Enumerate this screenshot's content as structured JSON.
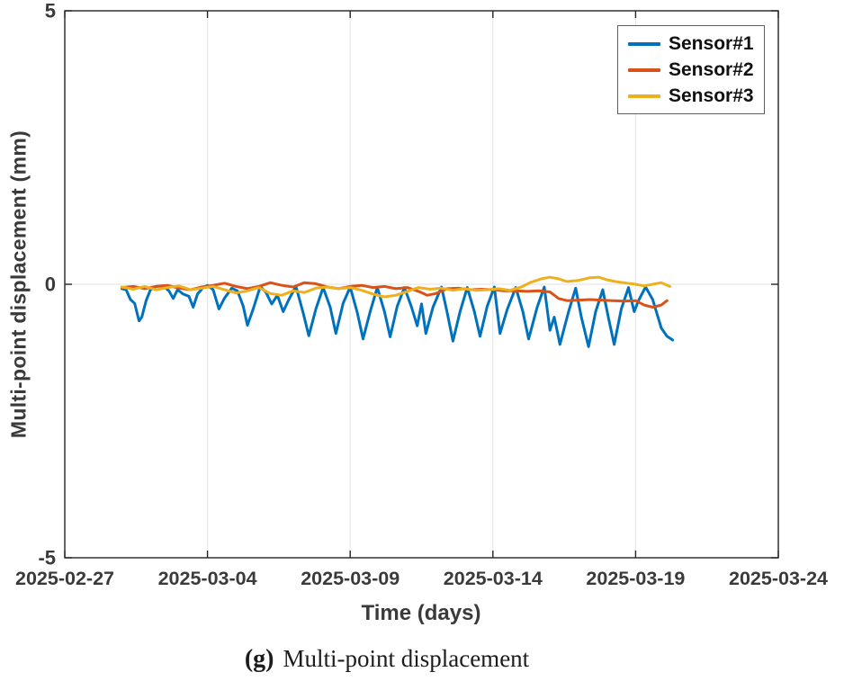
{
  "figure": {
    "caption_tag": "(g)",
    "caption_text": "Multi-point displacement"
  },
  "chart_data": {
    "type": "line",
    "title": "",
    "xlabel": "Time (days)",
    "ylabel": "Multi-point displacement (mm)",
    "x_unit": "days since 2025-02-27",
    "xlim_days": [
      0,
      25
    ],
    "ylim": [
      -5,
      5
    ],
    "grid": true,
    "legend_position": "top-right",
    "xtick_days": [
      0,
      5,
      10,
      15,
      20,
      25
    ],
    "xtick_labels": [
      "2025-02-27",
      "2025-03-04",
      "2025-03-09",
      "2025-03-14",
      "2025-03-19",
      "2025-03-24"
    ],
    "ytick_values": [
      -5,
      0,
      5
    ],
    "ytick_labels": [
      "-5",
      "0",
      "5"
    ],
    "colors": {
      "axis": "#262626",
      "grid": "#e8e8e8",
      "tick_label": "#3a3a3a"
    },
    "series": [
      {
        "name": "Sensor#1",
        "color": "#0072BD",
        "points": [
          [
            2.0,
            -0.08
          ],
          [
            2.15,
            -0.1
          ],
          [
            2.3,
            -0.28
          ],
          [
            2.45,
            -0.35
          ],
          [
            2.6,
            -0.67
          ],
          [
            2.7,
            -0.6
          ],
          [
            2.85,
            -0.3
          ],
          [
            3.0,
            -0.1
          ],
          [
            3.2,
            -0.04
          ],
          [
            3.45,
            -0.03
          ],
          [
            3.65,
            -0.12
          ],
          [
            3.8,
            -0.26
          ],
          [
            3.95,
            -0.1
          ],
          [
            4.15,
            -0.18
          ],
          [
            4.35,
            -0.22
          ],
          [
            4.5,
            -0.42
          ],
          [
            4.65,
            -0.18
          ],
          [
            4.85,
            -0.06
          ],
          [
            5.0,
            -0.02
          ],
          [
            5.2,
            -0.1
          ],
          [
            5.4,
            -0.45
          ],
          [
            5.6,
            -0.25
          ],
          [
            5.85,
            -0.07
          ],
          [
            6.05,
            -0.12
          ],
          [
            6.25,
            -0.4
          ],
          [
            6.4,
            -0.75
          ],
          [
            6.6,
            -0.45
          ],
          [
            6.85,
            -0.04
          ],
          [
            7.05,
            -0.15
          ],
          [
            7.25,
            -0.36
          ],
          [
            7.45,
            -0.2
          ],
          [
            7.65,
            -0.5
          ],
          [
            7.85,
            -0.28
          ],
          [
            8.1,
            -0.04
          ],
          [
            8.35,
            -0.52
          ],
          [
            8.55,
            -0.94
          ],
          [
            8.8,
            -0.45
          ],
          [
            9.05,
            -0.06
          ],
          [
            9.3,
            -0.42
          ],
          [
            9.5,
            -0.9
          ],
          [
            9.75,
            -0.35
          ],
          [
            10.0,
            -0.05
          ],
          [
            10.25,
            -0.52
          ],
          [
            10.45,
            -1.0
          ],
          [
            10.7,
            -0.5
          ],
          [
            10.95,
            -0.06
          ],
          [
            11.2,
            -0.5
          ],
          [
            11.4,
            -0.96
          ],
          [
            11.65,
            -0.4
          ],
          [
            11.9,
            -0.06
          ],
          [
            12.15,
            -0.42
          ],
          [
            12.35,
            -0.76
          ],
          [
            12.5,
            -0.36
          ],
          [
            12.65,
            -0.9
          ],
          [
            12.9,
            -0.42
          ],
          [
            13.2,
            -0.05
          ],
          [
            13.4,
            -0.52
          ],
          [
            13.6,
            -1.04
          ],
          [
            13.85,
            -0.5
          ],
          [
            14.1,
            -0.06
          ],
          [
            14.35,
            -0.5
          ],
          [
            14.55,
            -0.95
          ],
          [
            14.8,
            -0.4
          ],
          [
            15.05,
            -0.05
          ],
          [
            15.25,
            -0.9
          ],
          [
            15.5,
            -0.46
          ],
          [
            15.8,
            -0.06
          ],
          [
            16.05,
            -0.5
          ],
          [
            16.25,
            -1.0
          ],
          [
            16.55,
            -0.42
          ],
          [
            16.8,
            -0.05
          ],
          [
            17.0,
            -0.84
          ],
          [
            17.15,
            -0.6
          ],
          [
            17.35,
            -1.1
          ],
          [
            17.65,
            -0.5
          ],
          [
            17.9,
            -0.07
          ],
          [
            18.1,
            -0.6
          ],
          [
            18.35,
            -1.14
          ],
          [
            18.6,
            -0.5
          ],
          [
            18.85,
            -0.1
          ],
          [
            19.05,
            -0.62
          ],
          [
            19.25,
            -1.1
          ],
          [
            19.5,
            -0.45
          ],
          [
            19.75,
            -0.06
          ],
          [
            19.95,
            -0.5
          ],
          [
            20.1,
            -0.3
          ],
          [
            20.35,
            -0.05
          ],
          [
            20.6,
            -0.28
          ],
          [
            20.9,
            -0.8
          ],
          [
            21.1,
            -0.95
          ],
          [
            21.3,
            -1.02
          ]
        ]
      },
      {
        "name": "Sensor#2",
        "color": "#D95319",
        "points": [
          [
            2.0,
            -0.06
          ],
          [
            2.4,
            -0.04
          ],
          [
            2.8,
            -0.08
          ],
          [
            3.2,
            -0.04
          ],
          [
            3.6,
            -0.02
          ],
          [
            4.0,
            -0.07
          ],
          [
            4.4,
            -0.1
          ],
          [
            4.8,
            -0.05
          ],
          [
            5.2,
            -0.02
          ],
          [
            5.6,
            0.02
          ],
          [
            6.0,
            -0.04
          ],
          [
            6.4,
            -0.08
          ],
          [
            6.8,
            -0.04
          ],
          [
            7.2,
            0.03
          ],
          [
            7.6,
            -0.02
          ],
          [
            8.0,
            -0.05
          ],
          [
            8.4,
            0.03
          ],
          [
            8.8,
            0.01
          ],
          [
            9.2,
            -0.05
          ],
          [
            9.6,
            -0.08
          ],
          [
            10.0,
            -0.04
          ],
          [
            10.4,
            -0.02
          ],
          [
            10.8,
            -0.06
          ],
          [
            11.2,
            -0.04
          ],
          [
            11.6,
            -0.08
          ],
          [
            12.0,
            -0.06
          ],
          [
            12.4,
            -0.13
          ],
          [
            12.7,
            -0.2
          ],
          [
            13.0,
            -0.17
          ],
          [
            13.4,
            -0.08
          ],
          [
            13.8,
            -0.07
          ],
          [
            14.2,
            -0.1
          ],
          [
            14.6,
            -0.09
          ],
          [
            15.0,
            -0.1
          ],
          [
            15.4,
            -0.12
          ],
          [
            15.8,
            -0.12
          ],
          [
            16.2,
            -0.13
          ],
          [
            16.6,
            -0.12
          ],
          [
            17.0,
            -0.14
          ],
          [
            17.3,
            -0.26
          ],
          [
            17.6,
            -0.3
          ],
          [
            18.0,
            -0.29
          ],
          [
            18.4,
            -0.28
          ],
          [
            18.8,
            -0.29
          ],
          [
            19.2,
            -0.3
          ],
          [
            19.6,
            -0.31
          ],
          [
            20.0,
            -0.3
          ],
          [
            20.3,
            -0.38
          ],
          [
            20.6,
            -0.42
          ],
          [
            20.9,
            -0.38
          ],
          [
            21.1,
            -0.3
          ]
        ]
      },
      {
        "name": "Sensor#3",
        "color": "#EDB120",
        "points": [
          [
            2.0,
            -0.05
          ],
          [
            2.4,
            -0.09
          ],
          [
            2.8,
            -0.04
          ],
          [
            3.2,
            -0.1
          ],
          [
            3.6,
            -0.06
          ],
          [
            4.0,
            -0.03
          ],
          [
            4.4,
            -0.1
          ],
          [
            4.8,
            -0.07
          ],
          [
            5.2,
            -0.04
          ],
          [
            5.6,
            -0.1
          ],
          [
            6.0,
            -0.16
          ],
          [
            6.4,
            -0.12
          ],
          [
            6.8,
            -0.06
          ],
          [
            7.2,
            -0.17
          ],
          [
            7.6,
            -0.2
          ],
          [
            8.0,
            -0.12
          ],
          [
            8.4,
            -0.15
          ],
          [
            8.8,
            -0.07
          ],
          [
            9.2,
            -0.05
          ],
          [
            9.6,
            -0.08
          ],
          [
            10.0,
            -0.06
          ],
          [
            10.4,
            -0.11
          ],
          [
            10.8,
            -0.18
          ],
          [
            11.2,
            -0.23
          ],
          [
            11.6,
            -0.2
          ],
          [
            12.0,
            -0.13
          ],
          [
            12.4,
            -0.06
          ],
          [
            12.8,
            -0.09
          ],
          [
            13.2,
            -0.07
          ],
          [
            13.6,
            -0.11
          ],
          [
            14.0,
            -0.08
          ],
          [
            14.4,
            -0.11
          ],
          [
            14.8,
            -0.1
          ],
          [
            15.2,
            -0.08
          ],
          [
            15.6,
            -0.11
          ],
          [
            16.0,
            -0.05
          ],
          [
            16.3,
            0.03
          ],
          [
            16.7,
            0.1
          ],
          [
            17.0,
            0.13
          ],
          [
            17.3,
            0.1
          ],
          [
            17.6,
            0.05
          ],
          [
            18.0,
            0.07
          ],
          [
            18.4,
            0.12
          ],
          [
            18.7,
            0.13
          ],
          [
            19.0,
            0.08
          ],
          [
            19.3,
            0.05
          ],
          [
            19.7,
            0.02
          ],
          [
            20.0,
            0.0
          ],
          [
            20.3,
            -0.03
          ],
          [
            20.6,
            0.0
          ],
          [
            20.9,
            0.03
          ],
          [
            21.2,
            -0.04
          ]
        ]
      }
    ]
  }
}
